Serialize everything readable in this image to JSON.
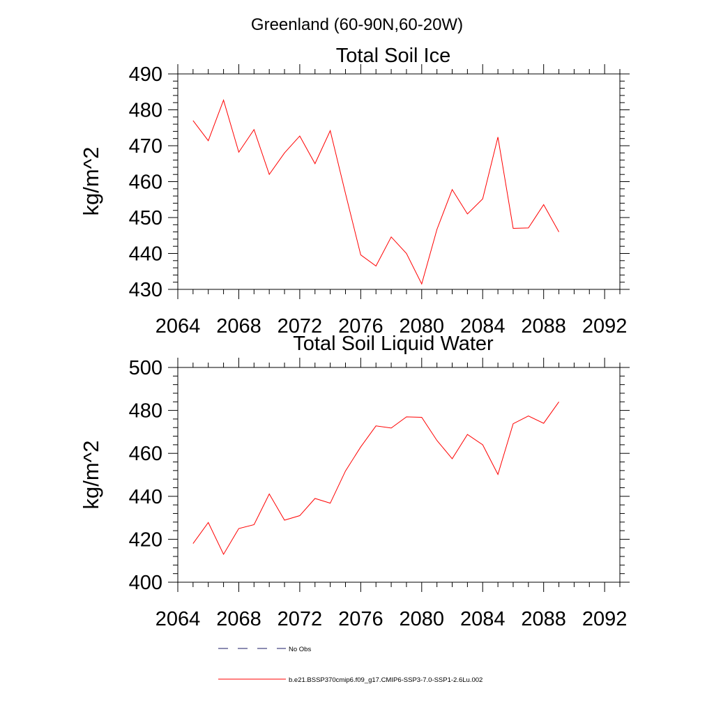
{
  "figure": {
    "title": "Greenland (60-90N,60-20W)"
  },
  "colors": {
    "series": "#ff0000",
    "obs": "#1a1a66",
    "axis": "#000000",
    "background": "#ffffff"
  },
  "legend": {
    "placement": "bottom",
    "entries": [
      {
        "label": "No Obs",
        "style": "dashed",
        "color": "#1a1a66"
      },
      {
        "label": "b.e21.BSSP370cmip6.f09_g17.CMIP6-SSP3-7.0-SSP1-2.6Lu.002",
        "style": "solid",
        "color": "#ff0000"
      }
    ]
  },
  "chart_data": [
    {
      "type": "line",
      "title": "Total Soil Ice",
      "xlabel": "",
      "ylabel": "kg/m^2",
      "xlim": [
        2064,
        2093
      ],
      "ylim": [
        430,
        490
      ],
      "xticks": [
        2064,
        2068,
        2072,
        2076,
        2080,
        2084,
        2088,
        2092
      ],
      "yticks": [
        430,
        440,
        450,
        460,
        470,
        480,
        490
      ],
      "grid": false,
      "x": [
        2065,
        2066,
        2067,
        2068,
        2069,
        2070,
        2071,
        2072,
        2073,
        2074,
        2075,
        2076,
        2077,
        2078,
        2079,
        2080,
        2081,
        2082,
        2083,
        2084,
        2085,
        2086,
        2087,
        2088,
        2089
      ],
      "series": [
        {
          "name": "b.e21.BSSP370cmip6.f09_g17.CMIP6-SSP3-7.0-SSP1-2.6Lu.002",
          "values": [
            477.0,
            471.4,
            482.7,
            468.2,
            474.5,
            462.0,
            468.0,
            472.7,
            465.0,
            474.2,
            456.7,
            439.6,
            436.5,
            444.6,
            440.0,
            431.5,
            446.7,
            457.8,
            451.0,
            455.2,
            472.4,
            447.0,
            447.1,
            453.6,
            446.0
          ]
        }
      ]
    },
    {
      "type": "line",
      "title": "Total Soil Liquid Water",
      "xlabel": "",
      "ylabel": "kg/m^2",
      "xlim": [
        2064,
        2093
      ],
      "ylim": [
        400,
        500
      ],
      "xticks": [
        2064,
        2068,
        2072,
        2076,
        2080,
        2084,
        2088,
        2092
      ],
      "yticks": [
        400,
        420,
        440,
        460,
        480,
        500
      ],
      "grid": false,
      "x": [
        2065,
        2066,
        2067,
        2068,
        2069,
        2070,
        2071,
        2072,
        2073,
        2074,
        2075,
        2076,
        2077,
        2078,
        2079,
        2080,
        2081,
        2082,
        2083,
        2084,
        2085,
        2086,
        2087,
        2088,
        2089
      ],
      "series": [
        {
          "name": "b.e21.BSSP370cmip6.f09_g17.CMIP6-SSP3-7.0-SSP1-2.6Lu.002",
          "values": [
            418.0,
            427.8,
            413.0,
            425.0,
            426.8,
            441.1,
            428.9,
            431.0,
            439.0,
            436.8,
            451.8,
            463.0,
            472.8,
            471.8,
            477.0,
            476.8,
            466.0,
            457.5,
            468.8,
            464.0,
            450.2,
            473.8,
            477.4,
            474.0,
            484.0
          ]
        }
      ]
    }
  ]
}
